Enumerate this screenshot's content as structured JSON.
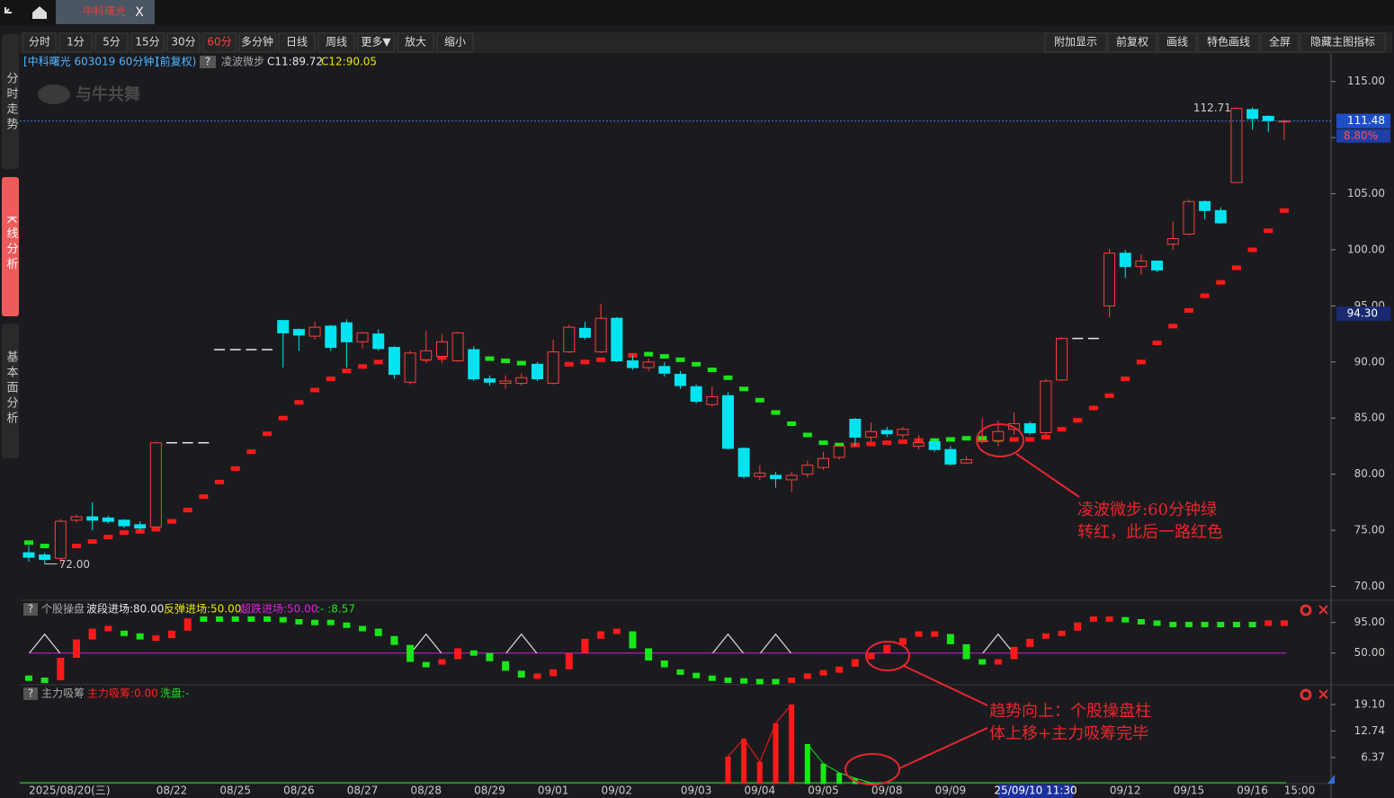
{
  "app": {
    "tab": "中科曙光",
    "close": "X",
    "sidebar": [
      "分时走势",
      "K线分析",
      "基本面分析"
    ],
    "watermark": "与牛共舞",
    "toolbar_left": [
      "分时",
      "1分",
      "5分",
      "15分",
      "30分",
      "60分",
      "多分钟",
      "日线",
      "周线",
      "更多▼",
      "放大",
      "缩小"
    ],
    "toolbar_active": 5,
    "toolbar_right": [
      "附加显示",
      "前复权",
      "画线",
      "特色画线",
      "全屏",
      "隐藏主图指标"
    ]
  },
  "chart_data": [
    {
      "type": "candlestick",
      "title": "[中科曙光 603019 60分钟]",
      "adjust": "(前复权)",
      "help": "?",
      "indicator": "凌波微步",
      "legend": [
        {
          "text": "C11:89.72",
          "color": "#e8e8e8"
        },
        {
          "text": "C12:90.05",
          "color": "#e8e800"
        }
      ],
      "categories": [
        "2025/08/20(三)",
        null,
        null,
        null,
        null,
        null,
        null,
        null,
        null,
        "08/22",
        null,
        null,
        null,
        "08/25",
        null,
        null,
        null,
        "08/26",
        null,
        null,
        null,
        "08/27",
        null,
        null,
        null,
        "08/28",
        null,
        null,
        null,
        "08/29",
        null,
        null,
        null,
        "09/01",
        null,
        null,
        null,
        "09/02",
        null,
        null,
        null,
        null,
        "09/03",
        null,
        null,
        null,
        "09/04",
        null,
        null,
        null,
        "09/05",
        null,
        null,
        null,
        "09/08",
        null,
        null,
        null,
        "09/09",
        null,
        null,
        null,
        null,
        null,
        null,
        null,
        null,
        null,
        null,
        "09/12",
        null,
        null,
        null,
        "09/15",
        null,
        null,
        null,
        "09/16",
        null,
        null
      ],
      "end_label": "15:00",
      "cursor_label": "25/09/10 11:30",
      "cursor_index": 62,
      "open": [
        73,
        72.8,
        72.5,
        75.9,
        76.2,
        76.1,
        75.9,
        75.5,
        75.3,
        82.8,
        82.8,
        82.8,
        91.1,
        91.1,
        91.1,
        91.1,
        93.7,
        92.9,
        92.3,
        93.2,
        93.5,
        91.8,
        92.5,
        91.3,
        88.2,
        90.2,
        90.5,
        90.1,
        91.1,
        88.5,
        88.1,
        88.1,
        89.8,
        88.1,
        90.9,
        93,
        90.9,
        93.9,
        90.1,
        89.5,
        89.6,
        88.9,
        87.8,
        86.2,
        87,
        82.3,
        79.8,
        79.9,
        79.5,
        80,
        80.6,
        81.5,
        84.9,
        83.3,
        83.9,
        83.5,
        82.5,
        82.9,
        82.2,
        81,
        82.9,
        83,
        84,
        84.5,
        83.7,
        88.4,
        92.1,
        92.1,
        95,
        99.7,
        98.5,
        99,
        100.5,
        101.4,
        104.3,
        103.5,
        106,
        112.5,
        111.9,
        111.4
      ],
      "high": [
        73.6,
        73,
        76,
        76.4,
        77.5,
        76.3,
        76,
        75.8,
        82.9,
        82.8,
        82.8,
        82.8,
        91.1,
        91.1,
        91.1,
        91.1,
        93.7,
        93,
        93.6,
        93.3,
        93.8,
        92.7,
        92.9,
        91.4,
        91,
        92.8,
        92.5,
        92.7,
        91.4,
        88.8,
        88.8,
        89,
        90,
        92,
        93.3,
        93.6,
        95.2,
        94,
        90.6,
        90.3,
        90,
        89.2,
        88,
        87.8,
        87.3,
        82.4,
        80.8,
        80.2,
        80.2,
        81.2,
        82,
        82.6,
        85,
        84.6,
        84.2,
        84.2,
        83.5,
        83.2,
        82.5,
        81.6,
        85,
        84.8,
        85.5,
        84.7,
        88.5,
        92.2,
        92.1,
        92.1,
        100.1,
        100,
        99.6,
        99,
        102.5,
        104.5,
        104.4,
        103.8,
        112.71,
        112.7,
        112,
        111.6
      ],
      "low": [
        72.2,
        72,
        72,
        75.7,
        75,
        75.6,
        75.2,
        75,
        75.2,
        82.8,
        82.8,
        82.8,
        91.1,
        91.1,
        91.1,
        91.1,
        89.5,
        91,
        92,
        91,
        89.5,
        91.2,
        91,
        88.5,
        88,
        89.9,
        89.9,
        90,
        88.3,
        87.9,
        87.6,
        87.9,
        88.3,
        88,
        90.8,
        92,
        90.8,
        90,
        89.3,
        89.2,
        88.7,
        87.6,
        86.3,
        86,
        82.2,
        79.6,
        79.5,
        78.8,
        78.4,
        79.7,
        80.4,
        81.3,
        82.5,
        82.9,
        83.3,
        83.2,
        82.2,
        82,
        80.8,
        80.9,
        82.7,
        82.5,
        83.5,
        83.5,
        83.5,
        88.3,
        92.1,
        92.1,
        94,
        97.5,
        97.8,
        98,
        100,
        101.3,
        102.7,
        102.3,
        106,
        110.7,
        110.5,
        109.8
      ],
      "close": [
        72.6,
        72.4,
        75.8,
        76.2,
        75.9,
        75.8,
        75.4,
        75.2,
        82.8,
        82.8,
        82.8,
        82.8,
        91.1,
        91.1,
        91.1,
        91.1,
        92.6,
        92.4,
        93.1,
        91.3,
        91.8,
        92.6,
        91.2,
        88.9,
        90.8,
        91,
        91.8,
        92.6,
        88.5,
        88.2,
        88.3,
        88.6,
        88.5,
        90.9,
        93.1,
        92.2,
        93.9,
        90.1,
        89.5,
        90,
        89,
        87.9,
        86.5,
        86.9,
        82.3,
        79.8,
        80.1,
        79.6,
        79.9,
        80.8,
        81.4,
        82.5,
        83.3,
        83.8,
        83.6,
        84,
        82.8,
        82.2,
        80.9,
        81.3,
        83,
        83.8,
        84.5,
        83.7,
        88.3,
        92.1,
        92.1,
        92.1,
        99.7,
        98.5,
        99,
        98.2,
        101,
        104.3,
        103.5,
        102.4,
        112.6,
        111.7,
        111.5,
        111.48
      ],
      "up_color": "#ff3c3c",
      "down_color": "#00e4f0",
      "flat_color": "#e8e8e8",
      "signal": {
        "values": [
          73.9,
          73.6,
          73.5,
          73.6,
          74,
          74.4,
          74.8,
          74.9,
          75.1,
          75.8,
          76.8,
          78,
          79.3,
          80.5,
          82,
          83.6,
          85,
          86.4,
          87.5,
          88.5,
          89.2,
          89.6,
          90,
          90,
          90.1,
          90.3,
          90.4,
          90.5,
          90.4,
          90.3,
          90.1,
          89.9,
          89.5,
          89.6,
          89.8,
          90,
          90.2,
          90.4,
          90.6,
          90.7,
          90.5,
          90.2,
          89.8,
          89.3,
          88.6,
          87.6,
          86.6,
          85.5,
          84.5,
          83.5,
          82.8,
          82.6,
          82.6,
          82.7,
          82.8,
          82.9,
          83,
          83,
          83.1,
          83.2,
          83.2,
          83.1,
          83.1,
          83.1,
          83.3,
          84,
          84.8,
          85.9,
          87,
          88.5,
          90,
          91.7,
          93.2,
          94.6,
          95.9,
          97.1,
          98.4,
          100,
          101.7,
          103.5
        ],
        "colors": [
          "lime",
          "lime",
          "red",
          "red",
          "red",
          "red",
          "red",
          "red",
          "red",
          "red",
          "red",
          "red",
          "red",
          "red",
          "red",
          "red",
          "red",
          "red",
          "red",
          "red",
          "red",
          "red",
          "red",
          "red",
          "red",
          "red",
          "red",
          "red",
          "lime",
          "lime",
          "lime",
          "lime",
          "lime",
          "red",
          "red",
          "red",
          "red",
          "red",
          "red",
          "lime",
          "lime",
          "lime",
          "lime",
          "lime",
          "lime",
          "lime",
          "lime",
          "lime",
          "lime",
          "lime",
          "lime",
          "lime",
          "red",
          "red",
          "red",
          "red",
          "red",
          "lime",
          "lime",
          "lime",
          "lime",
          "lime",
          "red",
          "red",
          "red",
          "red",
          "red",
          "red",
          "red",
          "red",
          "red",
          "red",
          "red",
          "red",
          "red",
          "red",
          "red",
          "red",
          "red",
          "red"
        ]
      },
      "ylim": [
        69,
        117.3
      ],
      "yticks": [
        {
          "value": 115,
          "label": "115.00"
        },
        {
          "value": 110,
          "label": "110.00"
        },
        {
          "value": 105,
          "label": "105.00"
        },
        {
          "value": 100,
          "label": "100.00"
        },
        {
          "value": 95,
          "label": "95.00"
        },
        {
          "value": 90,
          "label": "90.00"
        },
        {
          "value": 85,
          "label": "85.00"
        },
        {
          "value": 80,
          "label": "80.00"
        },
        {
          "value": 75,
          "label": "75.00"
        },
        {
          "value": 70,
          "label": "70.00"
        }
      ],
      "max_price": 112.71,
      "max_index": 76,
      "min_price": {
        "value": 72,
        "label": "72.00"
      },
      "min_index": 1,
      "change": {
        "value": 8.8,
        "label": "8.80%"
      },
      "cursor_price": {
        "value": 94.3,
        "label": "94.30"
      }
    },
    {
      "type": "step-bar",
      "title": "个股操盘",
      "help": "?",
      "legend": [
        {
          "text": "波段进场:80.00",
          "color": "#e8e8e8"
        },
        {
          "text": "反弹进场:50.00",
          "color": "#e8e800"
        },
        {
          "text": "超跌进场:50.00",
          "color": "#e020e0"
        },
        {
          "text": ":- :8.57",
          "color": "#20e020"
        }
      ],
      "values": [
        13,
        10,
        43,
        70,
        86,
        86,
        79,
        70,
        72,
        83,
        101,
        100,
        100,
        100,
        100,
        100,
        99,
        96,
        95,
        95,
        91,
        86,
        75,
        62,
        37,
        33,
        41,
        57,
        50,
        38,
        24,
        14,
        16,
        26,
        50,
        71,
        82,
        82,
        57,
        39,
        29,
        22,
        17,
        13,
        10,
        9,
        8,
        8,
        10,
        16,
        21,
        30,
        41,
        50,
        62,
        72,
        78,
        78,
        63,
        41,
        33,
        41,
        59,
        71,
        75,
        83,
        95,
        100,
        100,
        99,
        96,
        94,
        92,
        92,
        92,
        92,
        92,
        92,
        94,
        94
      ],
      "up_color": "#ff1a1a",
      "down_color": "#19e619",
      "level": 50,
      "level_color": "#d020d0",
      "triangles": [
        1,
        25,
        31,
        44,
        47,
        61
      ],
      "ylim": [
        6,
        125
      ],
      "yticks": [
        {
          "value": 95,
          "label": "95.00"
        },
        {
          "value": 50,
          "label": "50.00"
        }
      ]
    },
    {
      "type": "bar",
      "title": "主力吸筹",
      "help": "?",
      "legend": [
        {
          "text": "主力吸筹:0.00",
          "color": "#ff2020"
        },
        {
          "text": "洗盘:-",
          "color": "#20e020"
        }
      ],
      "series": [
        {
          "color": "#ff1a1a",
          "values": [
            null,
            null,
            null,
            null,
            null,
            null,
            null,
            null,
            null,
            null,
            null,
            null,
            null,
            null,
            null,
            null,
            null,
            null,
            null,
            null,
            null,
            null,
            null,
            null,
            null,
            null,
            null,
            null,
            null,
            null,
            null,
            null,
            null,
            null,
            null,
            null,
            null,
            null,
            null,
            null,
            null,
            null,
            null,
            null,
            6.6,
            10.9,
            5.3,
            14.6,
            19.1,
            null,
            null,
            null,
            null,
            null,
            null,
            null,
            null,
            null,
            null,
            null,
            null,
            null,
            null,
            null,
            null,
            null,
            null,
            null,
            null,
            null,
            null,
            null,
            null,
            null,
            null,
            null,
            null,
            null,
            null,
            null
          ]
        },
        {
          "color": "#19e619",
          "values": [
            null,
            null,
            null,
            null,
            null,
            null,
            null,
            null,
            null,
            null,
            null,
            null,
            null,
            null,
            null,
            null,
            null,
            null,
            null,
            null,
            null,
            null,
            null,
            null,
            null,
            null,
            null,
            null,
            null,
            null,
            null,
            null,
            null,
            null,
            null,
            null,
            null,
            null,
            null,
            null,
            null,
            null,
            null,
            null,
            null,
            null,
            null,
            null,
            null,
            9.6,
            4.9,
            2.7,
            1.4,
            0.3,
            null,
            null,
            null,
            null,
            null,
            null,
            null,
            null,
            null,
            null,
            null,
            null,
            null,
            null,
            null,
            null,
            null,
            null,
            null,
            null,
            null,
            null,
            null,
            null,
            null,
            null
          ]
        }
      ],
      "ylim": [
        0,
        22.1
      ],
      "yticks": [
        {
          "value": 19.1,
          "label": "19.10"
        },
        {
          "value": 12.74,
          "label": "12.74"
        },
        {
          "value": 6.37,
          "label": "6.37"
        }
      ]
    }
  ],
  "annotations": [
    {
      "lines": [
        "凌波微步:60分钟绿",
        "转红，此后一路红色"
      ]
    },
    {
      "lines": [
        "趋势向上：个股操盘柱",
        "体上移+主力吸筹完毕"
      ]
    }
  ]
}
